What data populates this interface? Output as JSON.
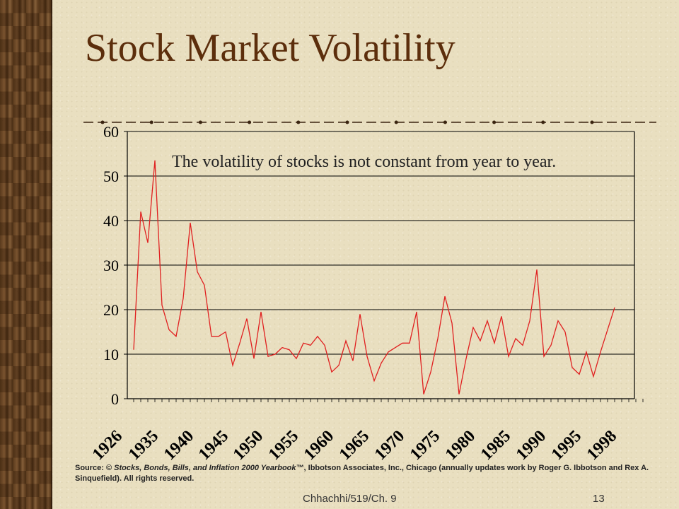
{
  "slide": {
    "title": "Stock Market Volatility",
    "source_prefix": "Source: © ",
    "source_italic": "Stocks, Bonds, Bills, and Inflation 2000 Yearbook™",
    "source_rest": ", Ibbotson Associates, Inc., Chicago (annually updates work by Roger G. Ibbotson and Rex A. Sinquefield). All rights reserved.",
    "footer_left": "Chhachhi/519/Ch. 9",
    "footer_right": "13"
  },
  "colors": {
    "title": "#5c2e0c",
    "line": "#e02020",
    "grid": "#000000",
    "divider": "#3a2410"
  },
  "chart_data": {
    "type": "line",
    "title": "",
    "annotation": "The volatility of stocks is not constant from year to year.",
    "xlabel": "",
    "ylabel": "",
    "ylim": [
      0,
      60
    ],
    "yticks": [
      0,
      10,
      20,
      30,
      40,
      50,
      60
    ],
    "grid": true,
    "x_tick_labels": [
      "1926",
      "1935",
      "1940",
      "1945",
      "1950",
      "1955",
      "1960",
      "1965",
      "1970",
      "1975",
      "1980",
      "1985",
      "1990",
      "1995",
      "1998"
    ],
    "x_tick_years": [
      1926,
      1935,
      1940,
      1945,
      1950,
      1955,
      1960,
      1965,
      1970,
      1975,
      1980,
      1985,
      1990,
      1995,
      1998
    ],
    "x_range": [
      1926,
      1998
    ],
    "series": [
      {
        "values": [
          [
            1926,
            11
          ],
          [
            1927,
            42
          ],
          [
            1928,
            35
          ],
          [
            1929,
            53.5
          ],
          [
            1930,
            21
          ],
          [
            1931,
            15.5
          ],
          [
            1932,
            14
          ],
          [
            1933,
            22.5
          ],
          [
            1934,
            39.5
          ],
          [
            1935,
            28.5
          ],
          [
            1936,
            25.5
          ],
          [
            1937,
            14
          ],
          [
            1938,
            14
          ],
          [
            1939,
            15
          ],
          [
            1940,
            7.5
          ],
          [
            1941,
            12.5
          ],
          [
            1942,
            18
          ],
          [
            1943,
            9
          ],
          [
            1944,
            19.5
          ],
          [
            1945,
            9.5
          ],
          [
            1946,
            10
          ],
          [
            1947,
            11.5
          ],
          [
            1948,
            11
          ],
          [
            1949,
            9
          ],
          [
            1950,
            12.5
          ],
          [
            1951,
            12
          ],
          [
            1952,
            14
          ],
          [
            1953,
            12
          ],
          [
            1954,
            6
          ],
          [
            1955,
            7.5
          ],
          [
            1956,
            13
          ],
          [
            1957,
            8.5
          ],
          [
            1958,
            19
          ],
          [
            1959,
            9.5
          ],
          [
            1960,
            4
          ],
          [
            1961,
            8
          ],
          [
            1962,
            10.5
          ],
          [
            1963,
            11.5
          ],
          [
            1964,
            12.5
          ],
          [
            1965,
            12.5
          ],
          [
            1966,
            19.5
          ],
          [
            1967,
            1
          ],
          [
            1968,
            6
          ],
          [
            1969,
            13.5
          ],
          [
            1970,
            23
          ],
          [
            1971,
            17
          ],
          [
            1972,
            1
          ],
          [
            1973,
            9
          ],
          [
            1974,
            16
          ],
          [
            1975,
            13
          ],
          [
            1976,
            17.5
          ],
          [
            1977,
            12.5
          ],
          [
            1978,
            18.5
          ],
          [
            1979,
            9.5
          ],
          [
            1980,
            13.5
          ],
          [
            1981,
            12
          ],
          [
            1982,
            17.5
          ],
          [
            1983,
            29
          ],
          [
            1984,
            9.5
          ],
          [
            1985,
            12
          ],
          [
            1986,
            17.5
          ],
          [
            1987,
            15
          ],
          [
            1988,
            7
          ],
          [
            1989,
            5.5
          ],
          [
            1990,
            10.5
          ],
          [
            1991,
            5
          ],
          [
            1992,
            10.5
          ],
          [
            1993,
            15.5
          ],
          [
            1994,
            20.5
          ]
        ]
      }
    ]
  }
}
